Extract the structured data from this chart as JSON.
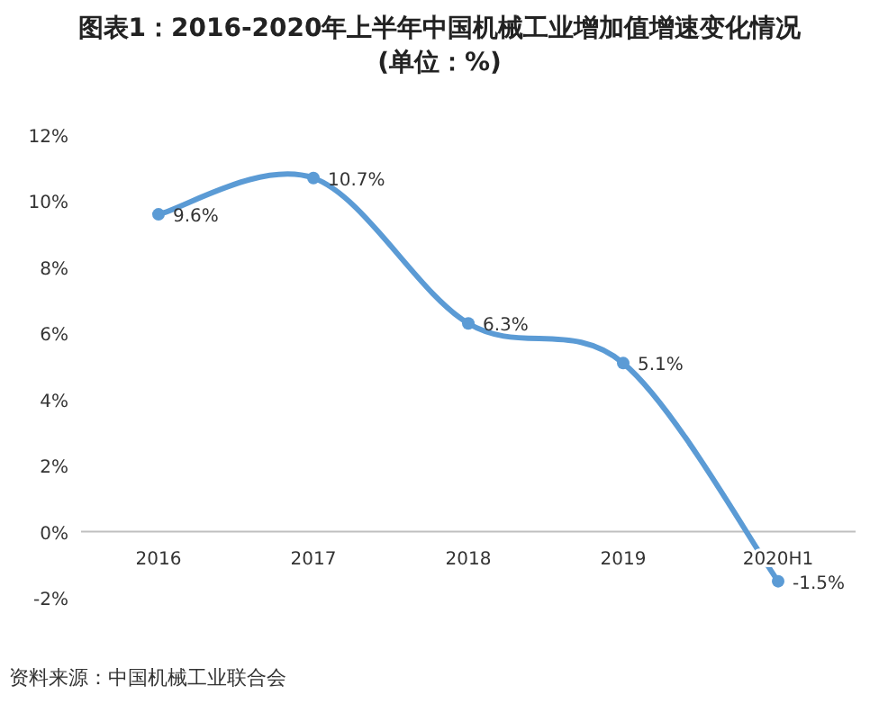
{
  "chart_data": {
    "type": "line",
    "title": "图表1：2016-2020年上半年中国机械工业增加值增速变化情况\n(单位：%)",
    "categories": [
      "2016",
      "2017",
      "2018",
      "2019",
      "2020H1"
    ],
    "values": [
      9.6,
      10.7,
      6.3,
      5.1,
      -1.5
    ],
    "value_labels": [
      "9.6%",
      "10.7%",
      "6.3%",
      "5.1%",
      "-1.5%"
    ],
    "color": "#5b9bd5",
    "marker": "circle",
    "ylim": [
      -2,
      12
    ],
    "yticks": [
      {
        "value": -2,
        "label": "-2%"
      },
      {
        "value": 0,
        "label": "0%"
      },
      {
        "value": 2,
        "label": "2%"
      },
      {
        "value": 4,
        "label": "4%"
      },
      {
        "value": 6,
        "label": "6%"
      },
      {
        "value": 8,
        "label": "8%"
      },
      {
        "value": 10,
        "label": "10%"
      },
      {
        "value": 12,
        "label": "12%"
      }
    ],
    "annotations": [
      "资料来源：中国机械工业联合会"
    ]
  }
}
